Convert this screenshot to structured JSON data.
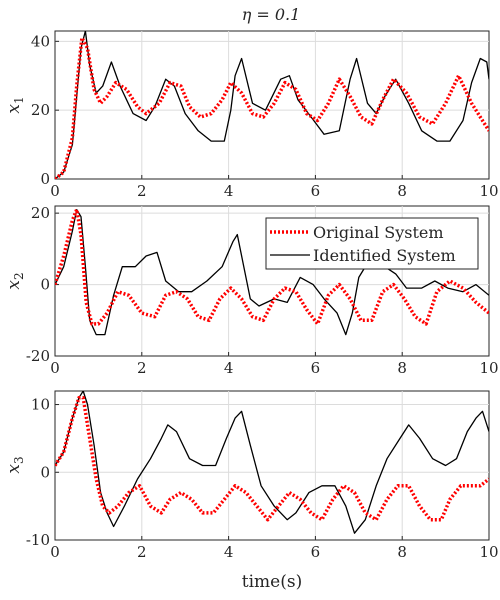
{
  "chart_data": [
    {
      "type": "line",
      "title": "η = 0.1",
      "ylabel": "x_1",
      "xlabel": "",
      "xlim": [
        0,
        10
      ],
      "ylim": [
        0,
        43
      ],
      "xticks": [
        "0",
        "2",
        "4",
        "6",
        "8",
        "10"
      ],
      "yticks": [
        0,
        20,
        40
      ],
      "ytick_labels": [
        "0",
        "20",
        "40"
      ],
      "grid": true,
      "series": [
        {
          "name": "Original System",
          "color": "#ff0000",
          "style": "dotted",
          "x": [
            0,
            0.2,
            0.4,
            0.5,
            0.62,
            0.75,
            0.9,
            1.05,
            1.2,
            1.4,
            1.65,
            1.9,
            2.1,
            2.4,
            2.65,
            2.9,
            3.1,
            3.35,
            3.6,
            3.85,
            4.05,
            4.3,
            4.55,
            4.8,
            5.05,
            5.3,
            5.55,
            5.8,
            6.05,
            6.3,
            6.55,
            6.8,
            7.05,
            7.3,
            7.55,
            7.8,
            8.1,
            8.4,
            8.7,
            9.0,
            9.3,
            9.6,
            10
          ],
          "y": [
            0,
            2,
            12,
            27,
            41,
            38,
            26,
            22,
            24,
            28,
            26,
            21,
            19,
            22,
            28,
            27,
            21,
            18,
            19,
            23,
            28,
            25,
            19,
            18,
            22,
            28,
            26,
            19,
            17,
            22,
            29,
            24,
            18,
            16,
            23,
            29,
            25,
            18,
            16,
            22,
            30,
            22,
            14
          ]
        },
        {
          "name": "Identified System",
          "color": "#000000",
          "style": "solid",
          "x": [
            0,
            0.2,
            0.4,
            0.5,
            0.6,
            0.7,
            0.8,
            0.95,
            1.1,
            1.3,
            1.5,
            1.8,
            2.1,
            2.3,
            2.55,
            2.75,
            3.0,
            3.3,
            3.6,
            3.9,
            4.05,
            4.15,
            4.3,
            4.55,
            4.85,
            5.2,
            5.4,
            5.6,
            5.9,
            6.2,
            6.55,
            6.8,
            6.95,
            7.2,
            7.4,
            7.6,
            7.85,
            8.15,
            8.45,
            8.8,
            9.1,
            9.4,
            9.6,
            9.8,
            9.95,
            10
          ],
          "y": [
            0,
            2,
            10,
            24,
            38,
            43,
            33,
            25,
            27,
            34,
            27,
            19,
            17,
            21,
            29,
            27,
            19,
            14,
            11,
            11,
            20,
            30,
            35,
            22,
            20,
            29,
            30,
            23,
            18,
            13,
            14,
            29,
            35,
            22,
            19,
            24,
            29,
            22,
            14,
            11,
            11,
            17,
            28,
            35,
            34,
            29
          ]
        }
      ]
    },
    {
      "type": "line",
      "title": "",
      "ylabel": "x_2",
      "xlabel": "",
      "xlim": [
        0,
        10
      ],
      "ylim": [
        -20,
        22
      ],
      "xticks": [
        "0",
        "2",
        "4",
        "6",
        "8",
        "10"
      ],
      "yticks": [
        -20,
        0,
        20
      ],
      "ytick_labels": [
        "-20",
        "0",
        "20"
      ],
      "grid": true,
      "legend": "top-right",
      "series": [
        {
          "name": "Original System",
          "color": "#ff0000",
          "style": "dotted",
          "x": [
            0,
            0.2,
            0.4,
            0.5,
            0.6,
            0.72,
            0.85,
            1.0,
            1.2,
            1.45,
            1.7,
            2.0,
            2.3,
            2.55,
            2.8,
            3.05,
            3.3,
            3.55,
            3.8,
            4.05,
            4.3,
            4.55,
            4.8,
            5.05,
            5.3,
            5.55,
            5.8,
            6.05,
            6.3,
            6.55,
            6.8,
            7.05,
            7.3,
            7.55,
            7.8,
            8.05,
            8.3,
            8.55,
            8.8,
            9.1,
            9.4,
            9.7,
            10
          ],
          "y": [
            0,
            8,
            18,
            21,
            14,
            -5,
            -11,
            -11,
            -8,
            -2,
            -3,
            -8,
            -9,
            -3,
            -2,
            -4,
            -9,
            -10,
            -4,
            -1,
            -4,
            -9,
            -10,
            -4,
            -1,
            -2,
            -7,
            -11,
            -3,
            0,
            -4,
            -10,
            -10,
            -2,
            0,
            -4,
            -9,
            -11,
            -2,
            1,
            -1,
            -5,
            -8
          ]
        },
        {
          "name": "Identified System",
          "color": "#000000",
          "style": "solid",
          "x": [
            0,
            0.2,
            0.4,
            0.5,
            0.6,
            0.7,
            0.8,
            0.95,
            1.15,
            1.35,
            1.55,
            1.85,
            2.1,
            2.35,
            2.55,
            2.85,
            3.15,
            3.5,
            3.85,
            4.1,
            4.2,
            4.35,
            4.5,
            4.7,
            5.05,
            5.35,
            5.65,
            5.95,
            6.2,
            6.5,
            6.7,
            6.85,
            7.0,
            7.2,
            7.4,
            7.6,
            7.85,
            8.1,
            8.45,
            8.75,
            9.05,
            9.4,
            9.7,
            10
          ],
          "y": [
            0,
            5,
            15,
            21,
            19,
            5,
            -10,
            -14,
            -14,
            -3,
            5,
            5,
            8,
            9,
            1,
            -2,
            -2,
            1,
            5,
            12,
            14,
            5,
            -4,
            -6,
            -4,
            -5,
            2,
            0,
            -4,
            -8,
            -14,
            -8,
            2,
            6,
            5,
            5,
            3,
            -1,
            -1,
            1,
            -1,
            -2,
            0,
            -3
          ]
        }
      ]
    },
    {
      "type": "line",
      "title": "",
      "ylabel": "x_3",
      "xlabel": "time(s)",
      "xlim": [
        0,
        10
      ],
      "ylim": [
        -10,
        12
      ],
      "xticks": [
        "0",
        "2",
        "4",
        "6",
        "8",
        "10"
      ],
      "yticks": [
        -10,
        0,
        10
      ],
      "ytick_labels": [
        "-10",
        "0",
        "10"
      ],
      "grid": true,
      "series": [
        {
          "name": "Original System",
          "color": "#ff0000",
          "style": "dotted",
          "x": [
            0,
            0.2,
            0.4,
            0.55,
            0.65,
            0.8,
            0.95,
            1.1,
            1.25,
            1.45,
            1.7,
            1.95,
            2.2,
            2.45,
            2.65,
            2.9,
            3.15,
            3.4,
            3.65,
            3.9,
            4.15,
            4.4,
            4.65,
            4.9,
            5.15,
            5.4,
            5.65,
            5.9,
            6.15,
            6.4,
            6.65,
            6.9,
            7.15,
            7.4,
            7.65,
            7.9,
            8.15,
            8.4,
            8.65,
            8.9,
            9.1,
            9.35,
            9.6,
            9.8,
            10
          ],
          "y": [
            1,
            3,
            8,
            11,
            11,
            5,
            -1,
            -5,
            -6,
            -5,
            -3,
            -2,
            -5,
            -6,
            -4,
            -3,
            -4,
            -6,
            -6,
            -4,
            -2,
            -3,
            -5,
            -7,
            -5,
            -3,
            -4,
            -6,
            -7,
            -4,
            -2,
            -3,
            -6,
            -7,
            -4,
            -2,
            -2,
            -5,
            -7,
            -7,
            -4,
            -2,
            -2,
            -2,
            -1
          ]
        },
        {
          "name": "Identified System",
          "color": "#000000",
          "style": "solid",
          "x": [
            0,
            0.2,
            0.4,
            0.55,
            0.65,
            0.75,
            0.9,
            1.05,
            1.2,
            1.35,
            1.6,
            1.9,
            2.2,
            2.45,
            2.6,
            2.8,
            3.1,
            3.4,
            3.7,
            3.95,
            4.15,
            4.3,
            4.5,
            4.75,
            5.05,
            5.35,
            5.55,
            5.85,
            6.15,
            6.45,
            6.7,
            6.9,
            7.15,
            7.4,
            7.65,
            7.95,
            8.15,
            8.4,
            8.7,
            9.0,
            9.25,
            9.5,
            9.7,
            9.85,
            10
          ],
          "y": [
            1,
            3,
            8,
            11,
            12,
            10,
            4,
            -3,
            -6,
            -8,
            -5,
            -1,
            2,
            5,
            7,
            6,
            2,
            1,
            1,
            5,
            8,
            9,
            4,
            -2,
            -5,
            -7,
            -6,
            -3,
            -2,
            -2,
            -5,
            -9,
            -7,
            -2,
            2,
            5,
            7,
            5,
            2,
            1,
            2,
            6,
            8,
            9,
            6
          ]
        }
      ]
    }
  ]
}
